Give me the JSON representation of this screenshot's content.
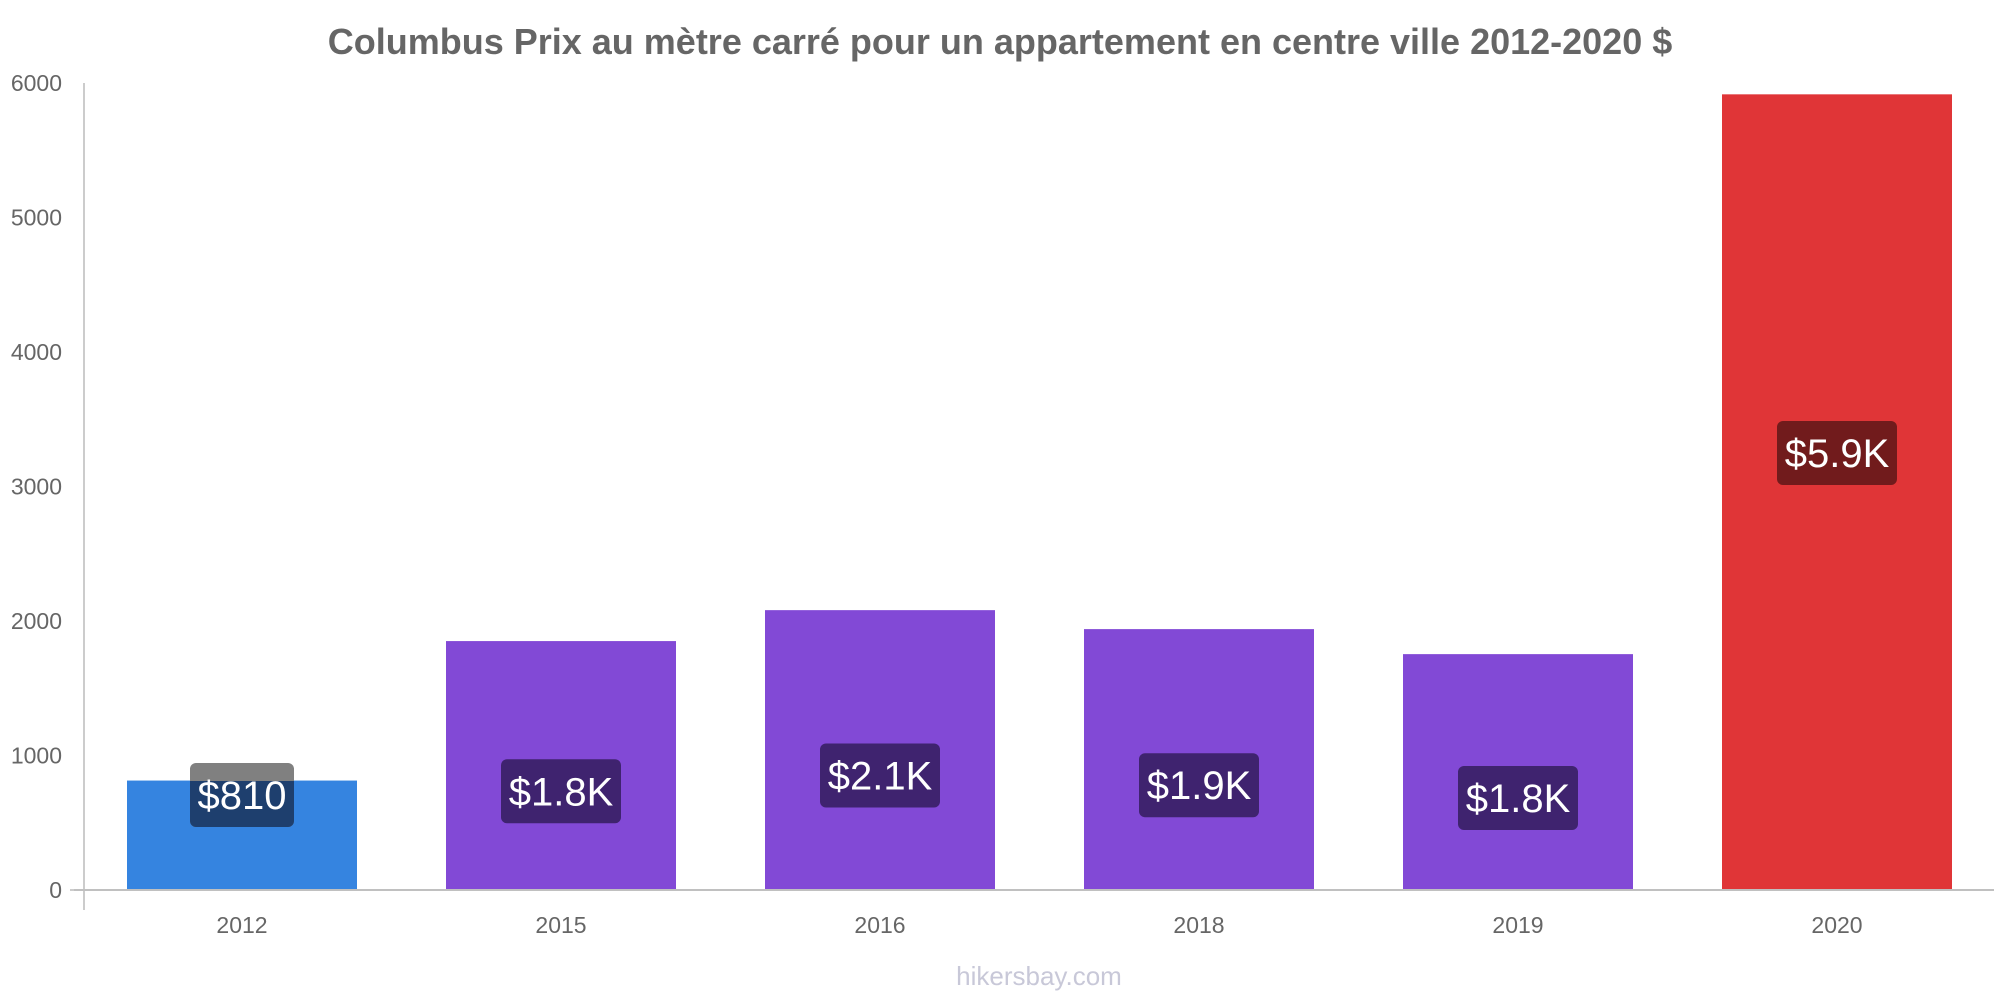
{
  "chart_data": {
    "type": "bar",
    "title": "Columbus Prix au mètre carré pour un appartement en centre ville 2012-2020 $",
    "xlabel": "",
    "ylabel": "",
    "ylim": [
      0,
      6000
    ],
    "yticks": [
      0,
      1000,
      2000,
      3000,
      4000,
      5000,
      6000
    ],
    "ytick_labels": [
      "0",
      "1000",
      "2000",
      "3000",
      "4000",
      "5000",
      "6000"
    ],
    "grid": false,
    "legend": null,
    "categories": [
      "2012",
      "2015",
      "2016",
      "2018",
      "2019",
      "2020"
    ],
    "values": [
      810,
      1847,
      2077,
      1936,
      1750,
      5912
    ],
    "data_labels": [
      "$810",
      "$1.8K",
      "$2.1K",
      "$1.9K",
      "$1.8K",
      "$5.9K"
    ],
    "bar_colors": [
      "#3584e0",
      "#8249d6",
      "#8249d6",
      "#8249d6",
      "#8249d6",
      "#e03537"
    ],
    "label_box_colors": [
      "#1e3f6e",
      "#3f236f",
      "#3f236f",
      "#3f236f",
      "#3f236f",
      "#711b1c"
    ],
    "watermark": "hikersbay.com"
  }
}
